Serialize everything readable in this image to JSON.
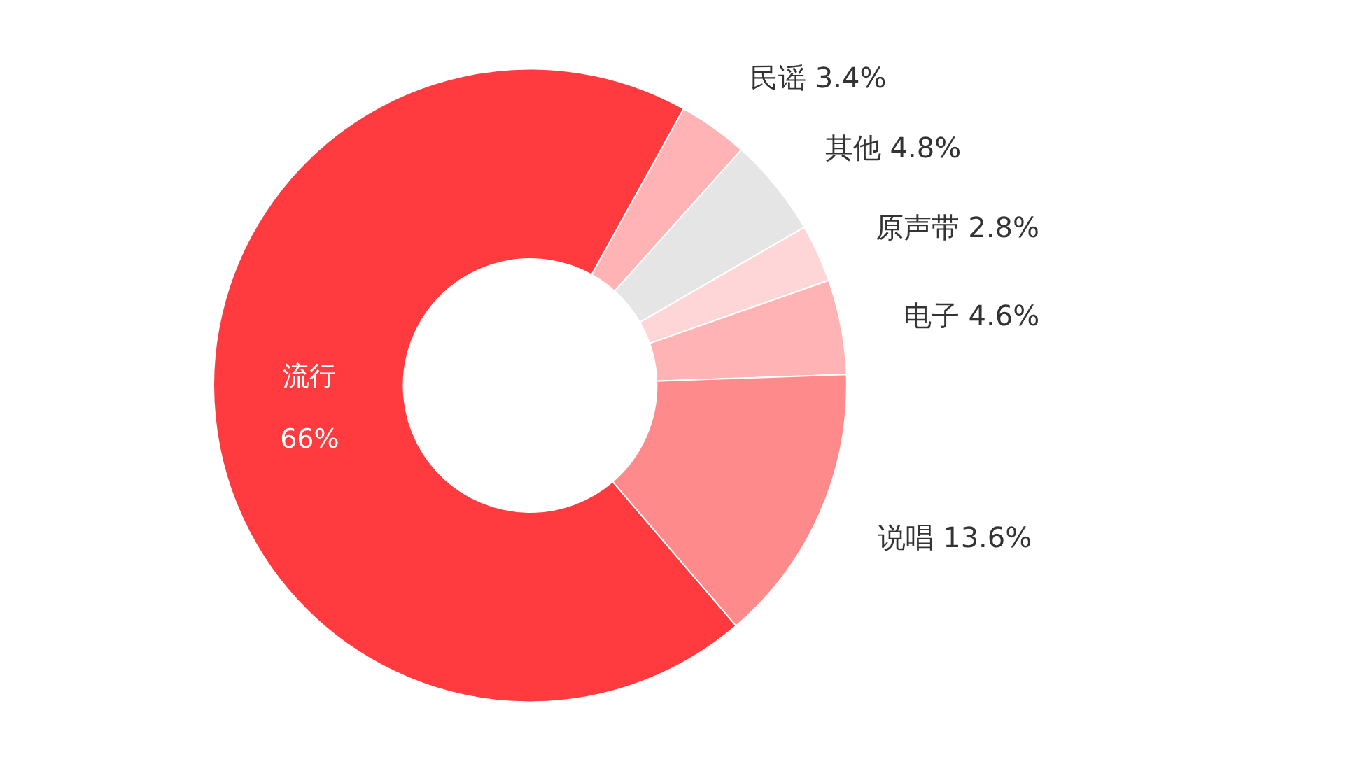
{
  "chart_data": {
    "type": "donut",
    "categories": [
      "民谣",
      "其他",
      "原声带",
      "电子",
      "说唱",
      "流行"
    ],
    "values": [
      3.4,
      4.8,
      2.8,
      4.6,
      13.6,
      66
    ],
    "value_labels": [
      "3.4%",
      "4.8%",
      "2.8%",
      "4.6%",
      "13.6%",
      "66%"
    ],
    "colors": [
      "#ffb3b5",
      "#e5e5e5",
      "#ffd6d7",
      "#ffb3b5",
      "#ff8a8c",
      "#ff3b3f"
    ]
  }
}
